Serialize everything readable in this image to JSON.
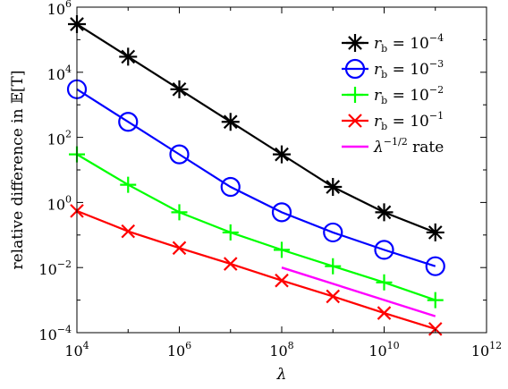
{
  "chart_data": {
    "type": "line",
    "xlabel": "λ",
    "ylabel": "relative difference in 𝔼[T]",
    "xscale": "log",
    "yscale": "log",
    "xlim": [
      10000,
      1000000000000
    ],
    "ylim": [
      0.0001,
      1000000
    ],
    "x_ticks": [
      {
        "base": "10",
        "exp": "4",
        "value": 10000
      },
      {
        "base": "10",
        "exp": "6",
        "value": 1000000
      },
      {
        "base": "10",
        "exp": "8",
        "value": 100000000
      },
      {
        "base": "10",
        "exp": "10",
        "value": 10000000000
      },
      {
        "base": "10",
        "exp": "12",
        "value": 1000000000000
      }
    ],
    "y_ticks": [
      {
        "base": "10",
        "exp": "−4",
        "value": 0.0001
      },
      {
        "base": "10",
        "exp": "−2",
        "value": 0.01
      },
      {
        "base": "10",
        "exp": "0",
        "value": 1
      },
      {
        "base": "10",
        "exp": "2",
        "value": 100
      },
      {
        "base": "10",
        "exp": "4",
        "value": 10000
      },
      {
        "base": "10",
        "exp": "6",
        "value": 1000000
      }
    ],
    "grid": false,
    "legend_position": "top-right",
    "x": [
      10000,
      100000,
      1000000,
      10000000,
      100000000,
      1000000000,
      10000000000,
      100000000000
    ],
    "series": [
      {
        "name": "r_b = 10^-4",
        "name_parts": {
          "var": "r",
          "sub": "b",
          "eq": " = 10",
          "sup": "−4"
        },
        "color": "#000000",
        "marker": "asterisk",
        "values": [
          300000,
          30000,
          3000,
          300,
          30,
          3,
          0.5,
          0.12
        ]
      },
      {
        "name": "r_b = 10^-3",
        "name_parts": {
          "var": "r",
          "sub": "b",
          "eq": " = 10",
          "sup": "−3"
        },
        "color": "#0000ff",
        "marker": "circle",
        "values": [
          3000,
          300,
          30,
          3,
          0.5,
          0.12,
          0.035,
          0.011
        ]
      },
      {
        "name": "r_b = 10^-2",
        "name_parts": {
          "var": "r",
          "sub": "b",
          "eq": " = 10",
          "sup": "−2"
        },
        "color": "#00ff00",
        "marker": "plus",
        "values": [
          30,
          3.5,
          0.5,
          0.12,
          0.035,
          0.011,
          0.0035,
          0.001
        ]
      },
      {
        "name": "r_b = 10^-1",
        "name_parts": {
          "var": "r",
          "sub": "b",
          "eq": " = 10",
          "sup": "−1"
        },
        "color": "#ff0000",
        "marker": "x",
        "values": [
          0.55,
          0.13,
          0.04,
          0.013,
          0.004,
          0.0013,
          0.0004,
          0.00013
        ]
      }
    ],
    "reference_line": {
      "name": "λ^-1/2 rate",
      "name_parts": {
        "var": "λ",
        "sup": "−1/2",
        "rest": " rate"
      },
      "color": "#ff00ff",
      "x": [
        100000000,
        100000000000
      ],
      "values": [
        0.01,
        0.00032
      ]
    }
  }
}
